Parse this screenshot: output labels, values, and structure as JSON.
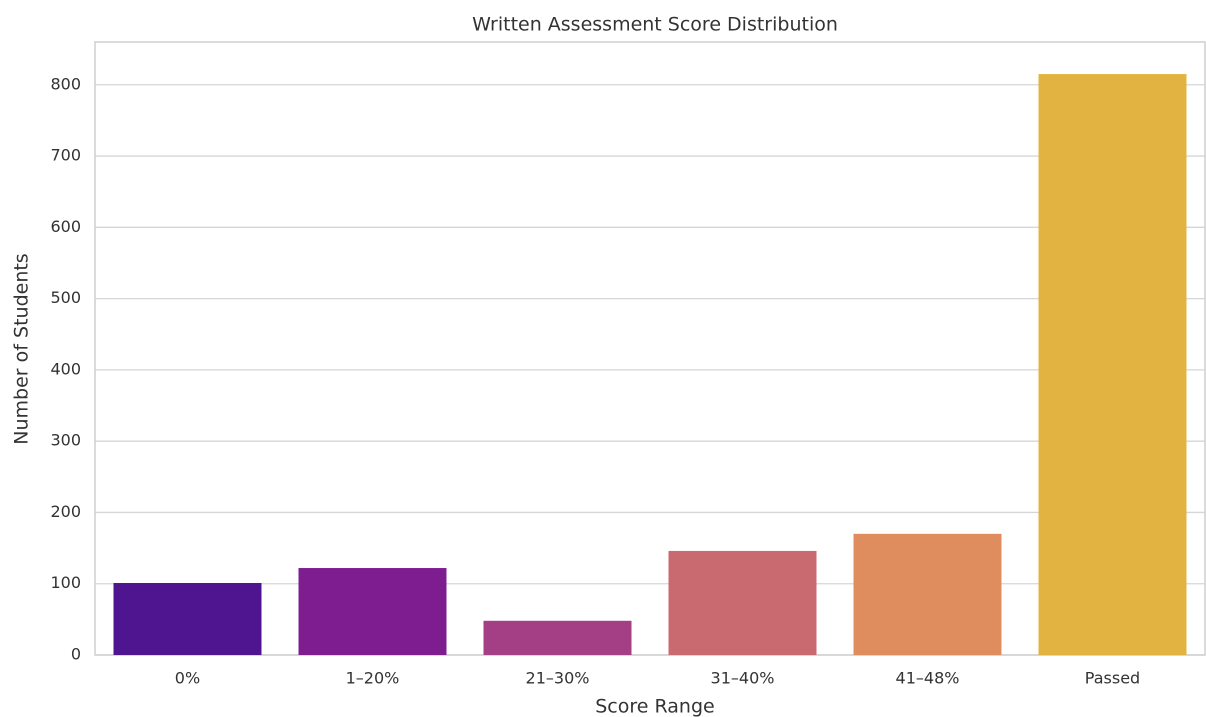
{
  "chart_data": {
    "type": "bar",
    "title": "Written Assessment Score Distribution",
    "x_label": "Score Range",
    "y_label": "Number of Students",
    "categories": [
      "0%",
      "1–20%",
      "21–30%",
      "31–40%",
      "41–48%",
      "Passed"
    ],
    "values": [
      101,
      122,
      48,
      146,
      170,
      815
    ],
    "colors": [
      "#4f1490",
      "#7d1d90",
      "#a53f85",
      "#c96a70",
      "#df8d5e",
      "#e3b342"
    ],
    "ylim": [
      0,
      860
    ],
    "yticks": [
      0,
      100,
      200,
      300,
      400,
      500,
      600,
      700,
      800
    ],
    "grid": true
  }
}
